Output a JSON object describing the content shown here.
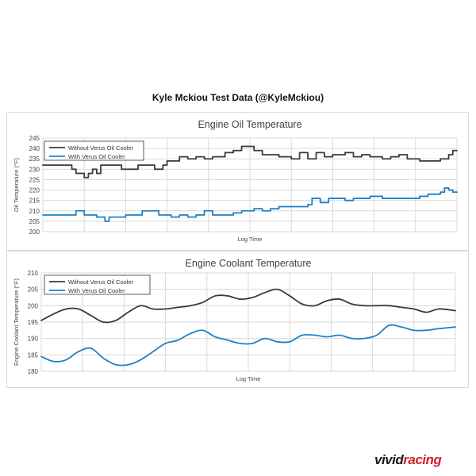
{
  "header": {
    "title": "Kyle Mckiou Test Data (@KyleMckiou)"
  },
  "logo": {
    "part1": "vivid",
    "part2": "racing",
    "accent": "#d21f26"
  },
  "colors": {
    "without": "#3a3a3a",
    "with": "#1f80c4",
    "grid": "#d9d9d9"
  },
  "chart_data": [
    {
      "type": "line",
      "title": "Engine Oil Temperature",
      "xlabel": "Log Time",
      "ylabel": "Oil Temperature (°F)",
      "ylim": [
        200,
        245
      ],
      "yticks": [
        200,
        205,
        210,
        215,
        220,
        225,
        230,
        235,
        240,
        245
      ],
      "grid": true,
      "legend": "top-left",
      "series": [
        {
          "name": "Without Verus Oil Cooler",
          "x": [
            0,
            3,
            6,
            7,
            8,
            9,
            10,
            11,
            12,
            13,
            14,
            16,
            19,
            20,
            23,
            25,
            27,
            29,
            30,
            33,
            35,
            37,
            39,
            41,
            44,
            46,
            48,
            51,
            53,
            55,
            57,
            60,
            62,
            64,
            66,
            68,
            70,
            73,
            75,
            77,
            79,
            82,
            84,
            86,
            88,
            89,
            91,
            94,
            96,
            98,
            99,
            100
          ],
          "values": [
            232,
            232,
            232,
            230,
            228,
            228,
            226,
            228,
            230,
            228,
            232,
            232,
            230,
            230,
            232,
            232,
            230,
            232,
            234,
            236,
            235,
            236,
            235,
            236,
            238,
            239,
            241,
            239,
            237,
            237,
            236,
            235,
            238,
            235,
            238,
            236,
            237,
            238,
            236,
            237,
            236,
            235,
            236,
            237,
            235,
            235,
            234,
            234,
            235,
            237,
            239,
            239
          ]
        },
        {
          "name": "With Verus Oil Cooler",
          "x": [
            0,
            3,
            5,
            7,
            8,
            10,
            11,
            13,
            15,
            16,
            18,
            20,
            24,
            26,
            28,
            31,
            33,
            35,
            37,
            39,
            41,
            44,
            46,
            48,
            51,
            53,
            55,
            57,
            60,
            62,
            64,
            65,
            67,
            69,
            71,
            73,
            75,
            77,
            79,
            82,
            84,
            86,
            88,
            90,
            91,
            93,
            94,
            96,
            97,
            98,
            99,
            100
          ],
          "values": [
            208,
            208,
            208,
            208,
            210,
            208,
            208,
            207,
            205,
            207,
            207,
            208,
            210,
            210,
            208,
            207,
            208,
            207,
            208,
            210,
            208,
            208,
            209,
            210,
            211,
            210,
            211,
            212,
            212,
            212,
            213,
            216,
            214,
            216,
            216,
            215,
            216,
            216,
            217,
            216,
            216,
            216,
            216,
            216,
            217,
            218,
            218,
            219,
            221,
            220,
            219,
            219
          ]
        }
      ]
    },
    {
      "type": "line",
      "title": "Engine Coolant Temperature",
      "xlabel": "Log Time",
      "ylabel": "Engine Coolant Temperature (°F)",
      "ylim": [
        180,
        210
      ],
      "yticks": [
        180,
        185,
        190,
        195,
        200,
        205,
        210
      ],
      "grid": true,
      "legend": "top-left",
      "series": [
        {
          "name": "Without Verus Oil Cooler",
          "x": [
            0,
            3,
            6,
            9,
            12,
            15,
            18,
            21,
            24,
            27,
            30,
            33,
            36,
            39,
            42,
            45,
            48,
            51,
            54,
            57,
            60,
            63,
            66,
            69,
            72,
            75,
            78,
            81,
            84,
            87,
            90,
            93,
            96,
            100
          ],
          "values": [
            195.5,
            197.5,
            199,
            199,
            197,
            195,
            195.5,
            198,
            200,
            199,
            199,
            199.5,
            200,
            201,
            203,
            203,
            202,
            202.5,
            204,
            205,
            203,
            200.5,
            200,
            201.5,
            202,
            200.5,
            200,
            200,
            200,
            199.5,
            199,
            198,
            199,
            198.5
          ]
        },
        {
          "name": "With Verus Oil Cooler",
          "x": [
            0,
            3,
            6,
            9,
            12,
            15,
            18,
            21,
            24,
            27,
            30,
            33,
            36,
            39,
            42,
            45,
            48,
            51,
            54,
            57,
            60,
            63,
            66,
            69,
            72,
            75,
            78,
            81,
            84,
            87,
            90,
            93,
            96,
            100
          ],
          "values": [
            184.5,
            183,
            183.5,
            186,
            187,
            184,
            182,
            182,
            183.5,
            186,
            188.5,
            189.5,
            191.5,
            192.5,
            190.5,
            189.5,
            188.5,
            188.5,
            190,
            189,
            189,
            191,
            191,
            190.5,
            191,
            190,
            190,
            191,
            194,
            193.5,
            192.5,
            192.5,
            193,
            193.5
          ]
        }
      ]
    }
  ]
}
